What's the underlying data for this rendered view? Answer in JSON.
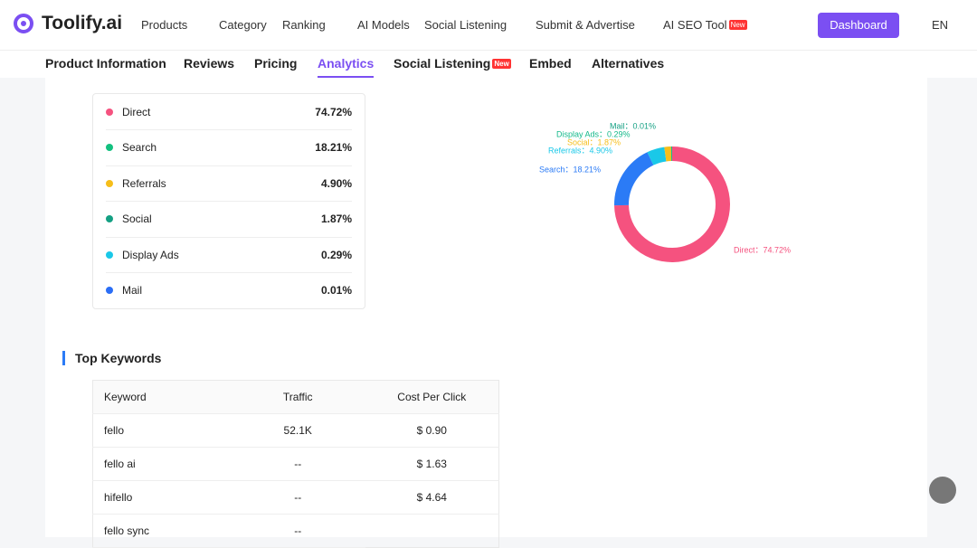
{
  "header": {
    "logo": "Toolify.ai",
    "nav": [
      "Products",
      "Category",
      "Ranking",
      "AI Models",
      "Social Listening",
      "Submit & Advertise",
      "AI SEO Tool"
    ],
    "new_badge": "New",
    "dashboard": "Dashboard",
    "language": "EN"
  },
  "tabs": {
    "items": [
      "Product Information",
      "Reviews",
      "Pricing",
      "Analytics",
      "Social Listening",
      "Embed",
      "Alternatives"
    ],
    "active": "Analytics",
    "new_badge": "New"
  },
  "chart_data": {
    "type": "pie",
    "categories": [
      "Direct",
      "Search",
      "Referrals",
      "Social",
      "Display Ads",
      "Mail"
    ],
    "values": [
      74.72,
      18.21,
      4.9,
      1.87,
      0.29,
      0.01
    ],
    "value_labels": [
      "74.72%",
      "18.21%",
      "4.90%",
      "1.87%",
      "0.29%",
      "0.01%"
    ],
    "slice_labels": [
      "Direct：74.72%",
      "Search：18.21%",
      "Referrals：4.90%",
      "Social：1.87%",
      "Display Ads：0.29%",
      "Mail：0.01%"
    ],
    "colors": [
      "#f5527f",
      "#2b7bf6",
      "#1ac8e8",
      "#f6be1a",
      "#13b98a",
      "#14a083"
    ],
    "list_colors": [
      "#f5527f",
      "#13c07f",
      "#f6be1a",
      "#14a083",
      "#1ac8e8",
      "#2b6ef6"
    ],
    "donut": true
  },
  "keywords": {
    "title": "Top Keywords",
    "columns": [
      "Keyword",
      "Traffic",
      "Cost Per Click"
    ],
    "rows": [
      [
        "fello",
        "52.1K",
        "$ 0.90"
      ],
      [
        "fello ai",
        "--",
        "$ 1.63"
      ],
      [
        "hifello",
        "--",
        "$ 4.64"
      ],
      [
        "fello sync",
        "--"
      ]
    ]
  }
}
